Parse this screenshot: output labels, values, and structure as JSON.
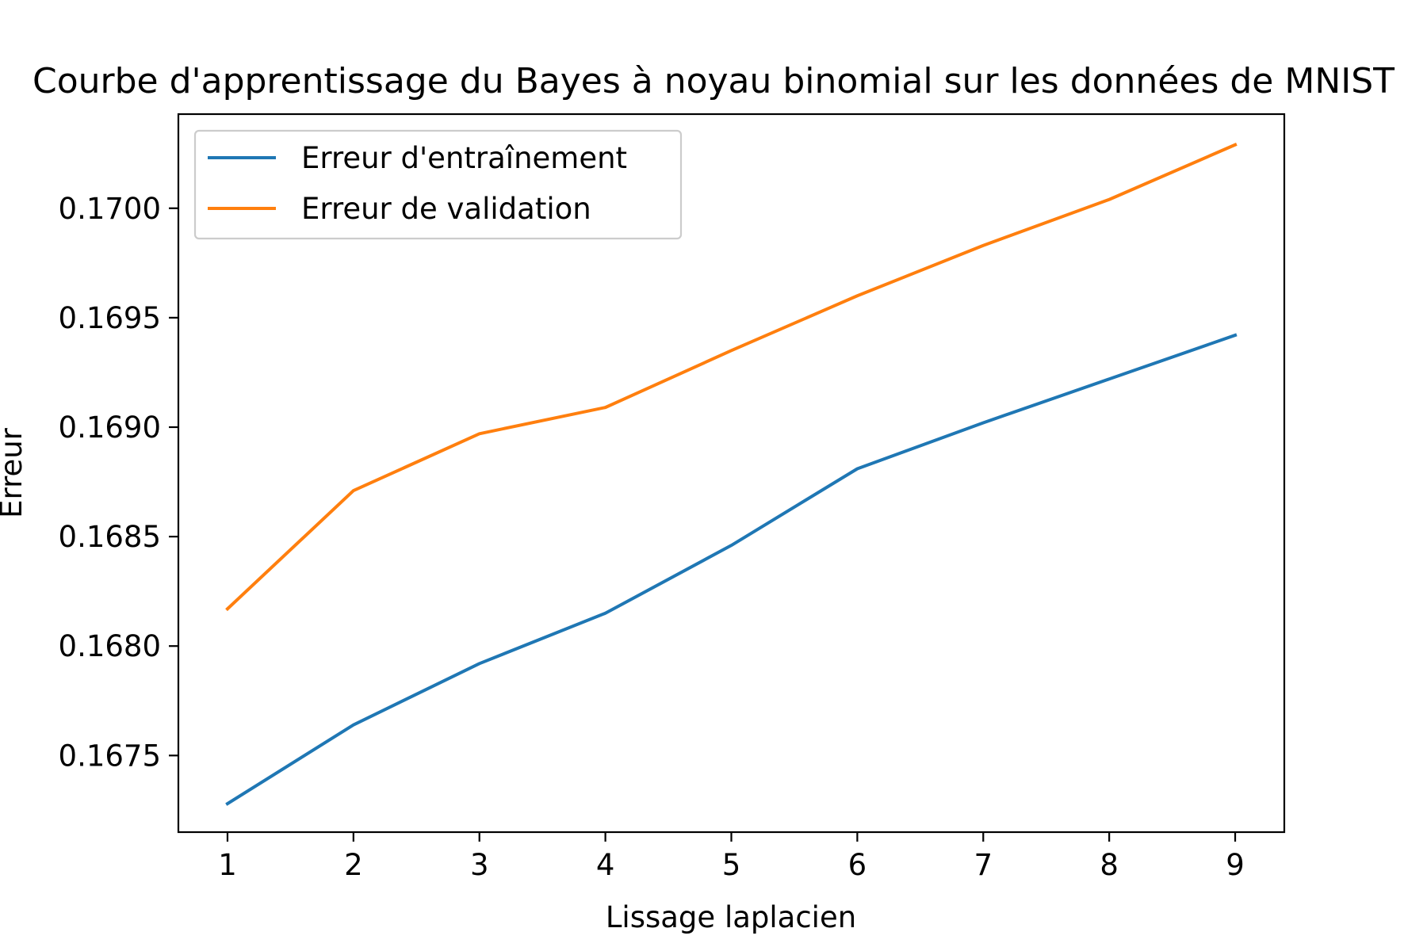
{
  "chart_data": {
    "type": "line",
    "title": "Courbe d'apprentissage du Bayes à noyau binomial sur les données de MNIST",
    "xlabel": "Lissage laplacien",
    "ylabel": "Erreur",
    "x": [
      1,
      2,
      3,
      4,
      5,
      6,
      7,
      8,
      9
    ],
    "xlim": [
      0.61,
      9.39
    ],
    "ylim": [
      0.16715,
      0.17043
    ],
    "yticks": [
      0.1675,
      0.168,
      0.1685,
      0.169,
      0.1695,
      0.17
    ],
    "ytick_labels": [
      "0.1675",
      "0.1680",
      "0.1685",
      "0.1690",
      "0.1695",
      "0.1700"
    ],
    "xtick_labels": [
      "1",
      "2",
      "3",
      "4",
      "5",
      "6",
      "7",
      "8",
      "9"
    ],
    "grid": false,
    "legend_position": "upper-left",
    "series": [
      {
        "name": "Erreur d'entraînement",
        "color": "#1f77b4",
        "values": [
          0.16728,
          0.16764,
          0.16792,
          0.16815,
          0.16846,
          0.16881,
          0.16902,
          0.16922,
          0.16942
        ]
      },
      {
        "name": "Erreur de validation",
        "color": "#ff7f0e",
        "values": [
          0.16817,
          0.16871,
          0.16897,
          0.16909,
          0.16935,
          0.1696,
          0.16983,
          0.17004,
          0.17029
        ]
      }
    ]
  }
}
